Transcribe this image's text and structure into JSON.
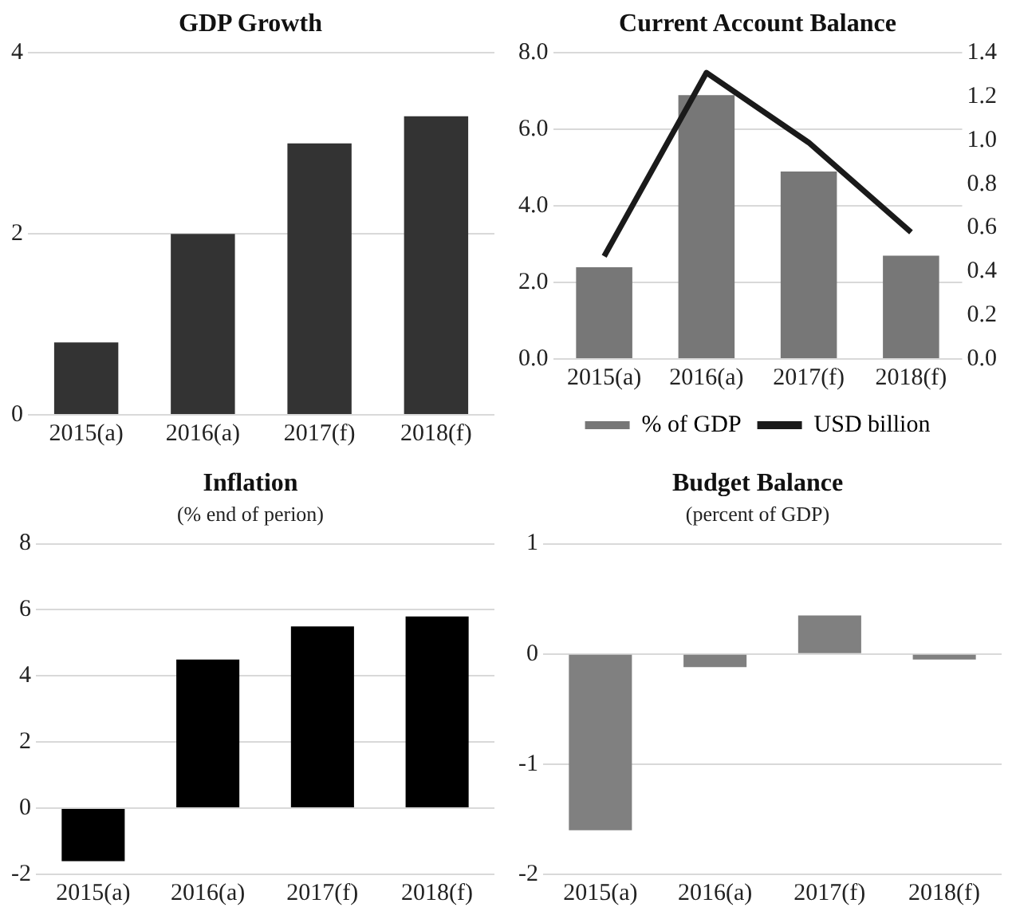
{
  "chart_data": [
    {
      "type": "bar",
      "title": "GDP Growth",
      "categories": [
        "2015(a)",
        "2016(a)",
        "2017(f)",
        "2018(f)"
      ],
      "values": [
        0.8,
        2.0,
        3.0,
        3.3
      ],
      "color": "#333333",
      "ylim": [
        0,
        4
      ],
      "yticks": [
        0,
        2,
        4
      ],
      "grid": "y",
      "legend": false
    },
    {
      "type": "bar",
      "title": "Current Account Balance",
      "categories": [
        "2015(a)",
        "2016(a)",
        "2017(f)",
        "2018(f)"
      ],
      "series": [
        {
          "name": "% of GDP",
          "color": "#777777",
          "values": [
            2.4,
            6.9,
            4.9,
            2.7
          ]
        },
        {
          "name": "USD billion",
          "type": "line",
          "axis": "y2",
          "color": "#1a1a1a",
          "values": [
            0.47,
            1.31,
            0.99,
            0.58
          ]
        }
      ],
      "ylim": [
        0,
        8
      ],
      "yticks": [
        {
          "value": 0,
          "label": "0.0"
        },
        {
          "value": 2,
          "label": "2.0"
        },
        {
          "value": 4,
          "label": "4.0"
        },
        {
          "value": 6,
          "label": "6.0"
        },
        {
          "value": 8,
          "label": "8.0"
        }
      ],
      "y2lim": [
        0,
        1.4
      ],
      "y2ticks": [
        {
          "value": 0,
          "label": "0.0"
        },
        {
          "value": 0.2,
          "label": "0.2"
        },
        {
          "value": 0.4,
          "label": "0.4"
        },
        {
          "value": 0.6,
          "label": "0.6"
        },
        {
          "value": 0.8,
          "label": "0.8"
        },
        {
          "value": 1,
          "label": "1.0"
        },
        {
          "value": 1.2,
          "label": "1.2"
        },
        {
          "value": 1.4,
          "label": "1.4"
        }
      ],
      "grid": "y",
      "legend": "bottom",
      "marker": "none"
    },
    {
      "type": "bar",
      "title": "Inflation",
      "subtitle": "(% end of perion)",
      "categories": [
        "2015(a)",
        "2016(a)",
        "2017(f)",
        "2018(f)"
      ],
      "values": [
        -1.6,
        4.5,
        5.5,
        5.8
      ],
      "color": "#000000",
      "ylim": [
        -2,
        8
      ],
      "yticks": [
        -2,
        0,
        2,
        4,
        6,
        8
      ],
      "grid": "y",
      "legend": false
    },
    {
      "type": "bar",
      "title": "Budget Balance",
      "subtitle": "(percent of GDP)",
      "categories": [
        "2015(a)",
        "2016(a)",
        "2017(f)",
        "2018(f)"
      ],
      "values": [
        -1.6,
        -0.12,
        0.35,
        -0.05
      ],
      "color": "#808080",
      "ylim": [
        -2,
        1
      ],
      "yticks": [
        -2,
        -1,
        0,
        1
      ],
      "grid": "y",
      "legend": false
    }
  ]
}
